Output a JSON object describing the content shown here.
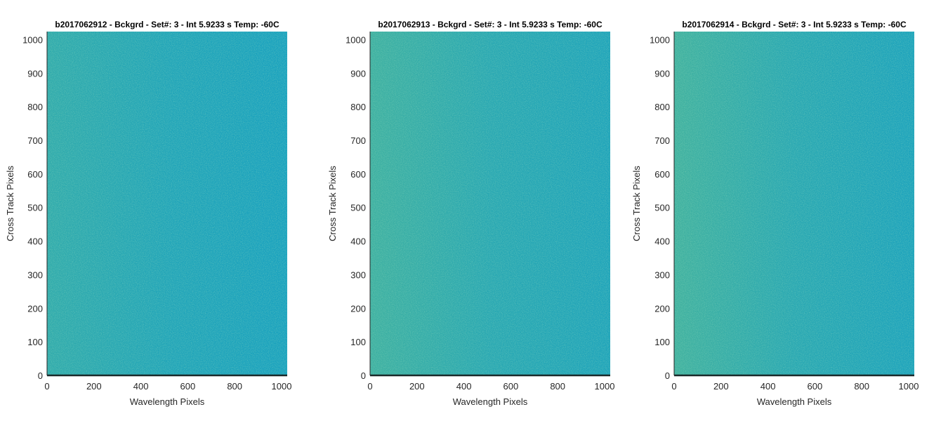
{
  "chart_data": [
    {
      "type": "heatmap",
      "title": "b2017062912 - Bckgrd - Set#: 3 - Int 5.9233 s Temp: -60C",
      "xlabel": "Wavelength Pixels",
      "ylabel": "Cross Track Pixels",
      "xlim": [
        0,
        1024
      ],
      "ylim": [
        0,
        1024
      ],
      "xticks": [
        0,
        200,
        400,
        600,
        800,
        1000
      ],
      "yticks": [
        0,
        100,
        200,
        300,
        400,
        500,
        600,
        700,
        800,
        900,
        1000
      ],
      "grid": false,
      "colors": {
        "low": "#139fc4",
        "mid": "#2aa8b2",
        "high": "#62bf86"
      },
      "intensity_trend": {
        "left": 0.38,
        "right": 0.08
      }
    },
    {
      "type": "heatmap",
      "title": "b2017062913 - Bckgrd - Set#: 3 - Int 5.9233 s Temp: -60C",
      "xlabel": "Wavelength Pixels",
      "ylabel": "Cross Track Pixels",
      "xlim": [
        0,
        1024
      ],
      "ylim": [
        0,
        1024
      ],
      "xticks": [
        0,
        200,
        400,
        600,
        800,
        1000
      ],
      "yticks": [
        0,
        100,
        200,
        300,
        400,
        500,
        600,
        700,
        800,
        900,
        1000
      ],
      "grid": false,
      "colors": {
        "low": "#139fc4",
        "mid": "#2aa8b2",
        "high": "#62bf86"
      },
      "intensity_trend": {
        "left": 0.55,
        "right": 0.15
      }
    },
    {
      "type": "heatmap",
      "title": "b2017062914 - Bckgrd - Set#: 3 - Int 5.9233 s Temp: -60C",
      "xlabel": "Wavelength Pixels",
      "ylabel": "Cross Track Pixels",
      "xlim": [
        0,
        1024
      ],
      "ylim": [
        0,
        1024
      ],
      "xticks": [
        0,
        200,
        400,
        600,
        800,
        1000
      ],
      "yticks": [
        0,
        100,
        200,
        300,
        400,
        500,
        600,
        700,
        800,
        900,
        1000
      ],
      "grid": false,
      "colors": {
        "low": "#139fc4",
        "mid": "#2aa8b2",
        "high": "#62bf86"
      },
      "intensity_trend": {
        "left": 0.58,
        "right": 0.12
      }
    }
  ]
}
